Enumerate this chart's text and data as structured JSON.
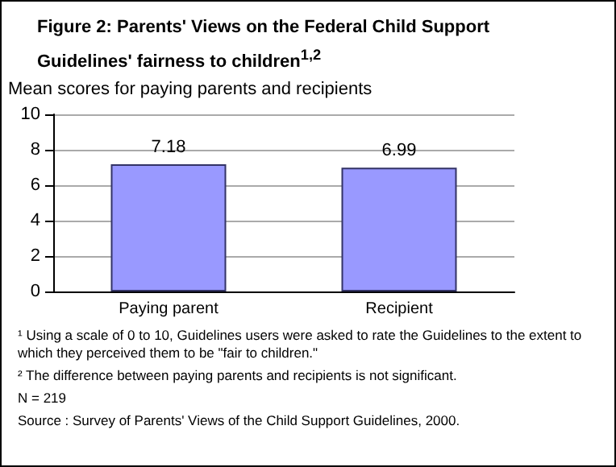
{
  "chart_data": {
    "type": "bar",
    "title": "Figure 2: Parents' Views on the Federal Child Support Guidelines' fairness to children$^{1,2}$",
    "ylabel": "Mean scores for paying parents and recipients",
    "categories": [
      "Paying parent",
      "Recipient"
    ],
    "values": [
      7.18,
      6.99
    ],
    "color": "#9999ff",
    "data_labels": true,
    "ylim": [
      0,
      10
    ],
    "yticks": [
      0,
      2,
      4,
      6,
      8,
      10
    ],
    "grid": "y",
    "annotations": [
      "¹ Using a scale of 0 to 10, Guidelines users were asked to rate the Guidelines to the extent to which they perceived them to be \"fair to children.\"",
      "² The difference between paying parents and recipients is not significant.",
      "N = 219",
      "Source : Survey of Parents' Views of the Child Support Guidelines, 2000."
    ]
  }
}
